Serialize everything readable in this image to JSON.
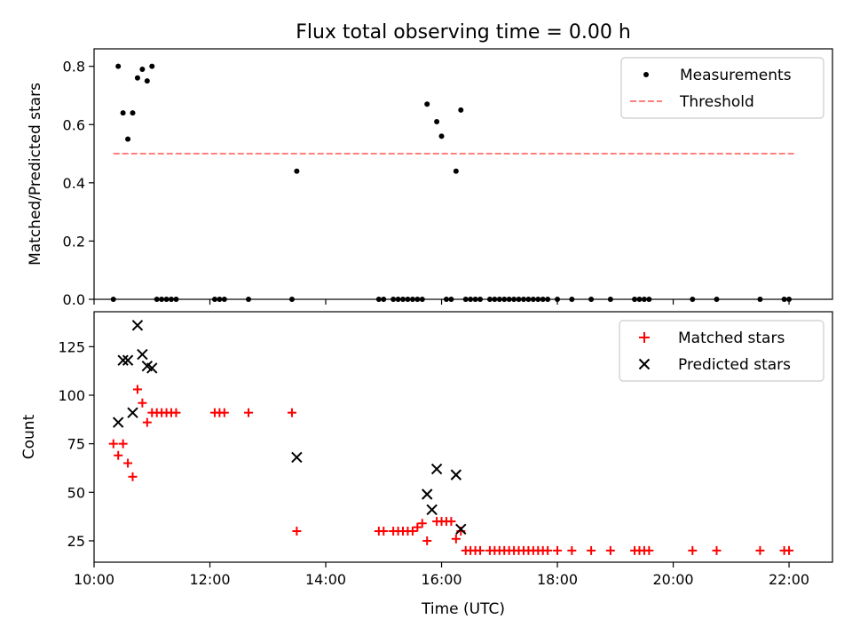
{
  "title": "Flux total observing time = 0.00 h",
  "chart_data": [
    {
      "type": "scatter",
      "ylabel": "Matched/Predicted stars",
      "xlabel": "",
      "xlim": [
        "10:00",
        "22:45"
      ],
      "ylim": [
        0,
        0.86
      ],
      "yticks": [
        "0.0",
        "0.2",
        "0.4",
        "0.6",
        "0.8"
      ],
      "legend_position": "top-right",
      "grid": false,
      "series": [
        {
          "name": "Measurements",
          "kind": "scatter",
          "color": "#000000",
          "x": [
            "10:20",
            "10:25",
            "10:30",
            "10:35",
            "10:40",
            "10:45",
            "10:50",
            "10:55",
            "11:00",
            "11:05",
            "11:10",
            "11:15",
            "11:20",
            "11:25",
            "12:05",
            "12:10",
            "12:15",
            "12:40",
            "13:25",
            "13:30",
            "14:55",
            "15:00",
            "15:10",
            "15:15",
            "15:20",
            "15:25",
            "15:30",
            "15:35",
            "15:40",
            "15:45",
            "15:55",
            "16:00",
            "16:05",
            "16:10",
            "16:15",
            "16:20",
            "16:25",
            "16:30",
            "16:35",
            "16:40",
            "16:50",
            "16:55",
            "17:00",
            "17:05",
            "17:10",
            "17:15",
            "17:20",
            "17:25",
            "17:30",
            "17:35",
            "17:40",
            "17:45",
            "17:50",
            "18:00",
            "18:15",
            "18:35",
            "18:55",
            "19:20",
            "19:25",
            "19:30",
            "19:35",
            "20:20",
            "20:45",
            "21:30",
            "21:55",
            "22:00"
          ],
          "y": [
            0.0,
            0.8,
            0.64,
            0.55,
            0.64,
            0.76,
            0.79,
            0.75,
            0.8,
            0.0,
            0.0,
            0.0,
            0.0,
            0.0,
            0.0,
            0.0,
            0.0,
            0.0,
            0.0,
            0.44,
            0.0,
            0.0,
            0.0,
            0.0,
            0.0,
            0.0,
            0.0,
            0.0,
            0.0,
            0.67,
            0.61,
            0.56,
            0.0,
            0.0,
            0.44,
            0.65,
            0.0,
            0.0,
            0.0,
            0.0,
            0.0,
            0.0,
            0.0,
            0.0,
            0.0,
            0.0,
            0.0,
            0.0,
            0.0,
            0.0,
            0.0,
            0.0,
            0.0,
            0.0,
            0.0,
            0.0,
            0.0,
            0.0,
            0.0,
            0.0,
            0.0,
            0.0,
            0.0,
            0.0,
            0.0,
            0.0
          ]
        },
        {
          "name": "Threshold",
          "kind": "dashed-line",
          "color": "#ff7f7f",
          "x": [
            "10:20",
            "22:05"
          ],
          "y": [
            0.5,
            0.5
          ]
        }
      ]
    },
    {
      "type": "scatter",
      "ylabel": "Count",
      "xlabel": "Time (UTC)",
      "xlim": [
        "10:00",
        "22:45"
      ],
      "ylim": [
        14,
        143
      ],
      "yticks": [
        "25",
        "50",
        "75",
        "100",
        "125"
      ],
      "xticks": [
        "10:00",
        "12:00",
        "14:00",
        "16:00",
        "18:00",
        "20:00",
        "22:00"
      ],
      "legend_position": "top-right",
      "grid": false,
      "series": [
        {
          "name": "Matched stars",
          "marker": "plus",
          "color": "#ff0000",
          "x": [
            "10:20",
            "10:25",
            "10:30",
            "10:35",
            "10:40",
            "10:45",
            "10:50",
            "10:55",
            "11:00",
            "11:05",
            "11:10",
            "11:15",
            "11:20",
            "11:25",
            "12:05",
            "12:10",
            "12:15",
            "12:40",
            "13:25",
            "13:30",
            "14:55",
            "15:00",
            "15:10",
            "15:15",
            "15:20",
            "15:25",
            "15:30",
            "15:35",
            "15:40",
            "15:45",
            "15:55",
            "16:00",
            "16:05",
            "16:10",
            "16:15",
            "16:20",
            "16:25",
            "16:30",
            "16:35",
            "16:40",
            "16:50",
            "16:55",
            "17:00",
            "17:05",
            "17:10",
            "17:15",
            "17:20",
            "17:25",
            "17:30",
            "17:35",
            "17:40",
            "17:45",
            "17:50",
            "18:00",
            "18:15",
            "18:35",
            "18:55",
            "19:20",
            "19:25",
            "19:30",
            "19:35",
            "20:20",
            "20:45",
            "21:30",
            "21:55",
            "22:00"
          ],
          "y": [
            75,
            69,
            75,
            65,
            58,
            103,
            96,
            86,
            91,
            91,
            91,
            91,
            91,
            91,
            91,
            91,
            91,
            91,
            91,
            30,
            30,
            30,
            30,
            30,
            30,
            30,
            30,
            32,
            34,
            25,
            35,
            35,
            35,
            35,
            26,
            30,
            20,
            20,
            20,
            20,
            20,
            20,
            20,
            20,
            20,
            20,
            20,
            20,
            20,
            20,
            20,
            20,
            20,
            20,
            20,
            20,
            20,
            20,
            20,
            20,
            20,
            20,
            20,
            20,
            20,
            20
          ]
        },
        {
          "name": "Predicted stars",
          "marker": "x",
          "color": "#000000",
          "x": [
            "10:25",
            "10:30",
            "10:35",
            "10:40",
            "10:45",
            "10:50",
            "10:55",
            "11:00",
            "13:30",
            "15:45",
            "15:50",
            "15:55",
            "16:15",
            "16:20"
          ],
          "y": [
            86,
            118,
            118,
            91,
            136,
            121,
            115,
            114,
            68,
            49,
            41,
            62,
            59,
            31
          ]
        }
      ]
    }
  ]
}
